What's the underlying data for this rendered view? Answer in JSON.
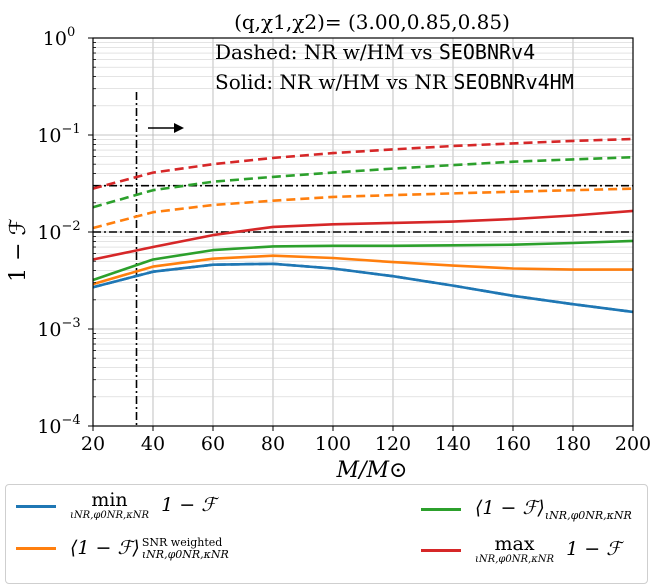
{
  "chart_data": {
    "type": "line",
    "title": "(q,χ1,χ2)= (3.00,0.85,0.85)",
    "xlabel": "M/M⊙",
    "ylabel": "1 − ℱ",
    "xlim": [
      20,
      200
    ],
    "ylim": [
      0.0001,
      1
    ],
    "yscale": "log",
    "grid": true,
    "x_ticks": [
      "20",
      "40",
      "60",
      "80",
      "100",
      "120",
      "140",
      "160",
      "180",
      "200"
    ],
    "y_ticks": [
      "10^0",
      "10^−1",
      "10^−2",
      "10^−3",
      "10^−4"
    ],
    "annotations": {
      "dashed_note_label": "Dashed: NR w/HM vs",
      "dashed_note_model": "SEOBNRv4",
      "solid_note_label": "Solid: NR w/HM vs NR",
      "solid_note_model": "SEOBNRv4HM",
      "vertical_line_x": 34.5,
      "horizontal_lines_y": [
        0.03,
        0.01
      ]
    },
    "x": [
      20,
      40,
      60,
      80,
      100,
      120,
      140,
      160,
      180,
      200
    ],
    "series": [
      {
        "key": "min",
        "color": "#1f77b4",
        "style": "solid",
        "values": [
          0.0027,
          0.0039,
          0.0046,
          0.0047,
          0.0042,
          0.0035,
          0.0028,
          0.0022,
          0.0018,
          0.0015
        ]
      },
      {
        "key": "snr",
        "color": "#ff7f0e",
        "style": "solid",
        "values": [
          0.0029,
          0.0044,
          0.0053,
          0.0057,
          0.0054,
          0.0049,
          0.0045,
          0.0042,
          0.0041,
          0.0041
        ]
      },
      {
        "key": "avg",
        "color": "#2ca02c",
        "style": "solid",
        "values": [
          0.0032,
          0.0052,
          0.0065,
          0.0071,
          0.0072,
          0.0072,
          0.0073,
          0.0074,
          0.0077,
          0.0081
        ]
      },
      {
        "key": "max",
        "color": "#d62728",
        "style": "solid",
        "values": [
          0.0052,
          0.007,
          0.0093,
          0.0113,
          0.012,
          0.0124,
          0.0128,
          0.0136,
          0.0148,
          0.0165
        ]
      },
      {
        "key": "min",
        "color": "#1f77b4",
        "style": "dashed",
        "values": [
          0.0027,
          0.0039,
          0.0046,
          0.0047,
          0.0042,
          0.0035,
          0.0028,
          0.0022,
          0.0018,
          0.0015
        ]
      },
      {
        "key": "snr",
        "color": "#ff7f0e",
        "style": "dashed",
        "values": [
          0.011,
          0.016,
          0.019,
          0.021,
          0.023,
          0.024,
          0.025,
          0.026,
          0.027,
          0.028
        ]
      },
      {
        "key": "avg",
        "color": "#2ca02c",
        "style": "dashed",
        "values": [
          0.018,
          0.027,
          0.033,
          0.037,
          0.041,
          0.045,
          0.049,
          0.053,
          0.056,
          0.059
        ]
      },
      {
        "key": "max",
        "color": "#d62728",
        "style": "dashed",
        "values": [
          0.028,
          0.041,
          0.05,
          0.058,
          0.065,
          0.071,
          0.077,
          0.082,
          0.087,
          0.091
        ]
      }
    ],
    "legend": {
      "placement": "below",
      "entries": [
        {
          "key": "min",
          "color": "#1f77b4",
          "op": "min",
          "subscript": "ιNR,φ0NR,κNR",
          "label": "1 − ℱ"
        },
        {
          "key": "snr",
          "color": "#ff7f0e",
          "label": "⟨1 − ℱ⟩",
          "superscript": "SNR weighted",
          "subscript": "ιNR,φ0NR,κNR"
        },
        {
          "key": "avg",
          "color": "#2ca02c",
          "label": "⟨1 − ℱ⟩",
          "subscript": "ιNR,φ0NR,κNR"
        },
        {
          "key": "max",
          "color": "#d62728",
          "op": "max",
          "subscript": "ιNR,φ0NR,κNR",
          "label": "1 − ℱ"
        }
      ]
    }
  }
}
